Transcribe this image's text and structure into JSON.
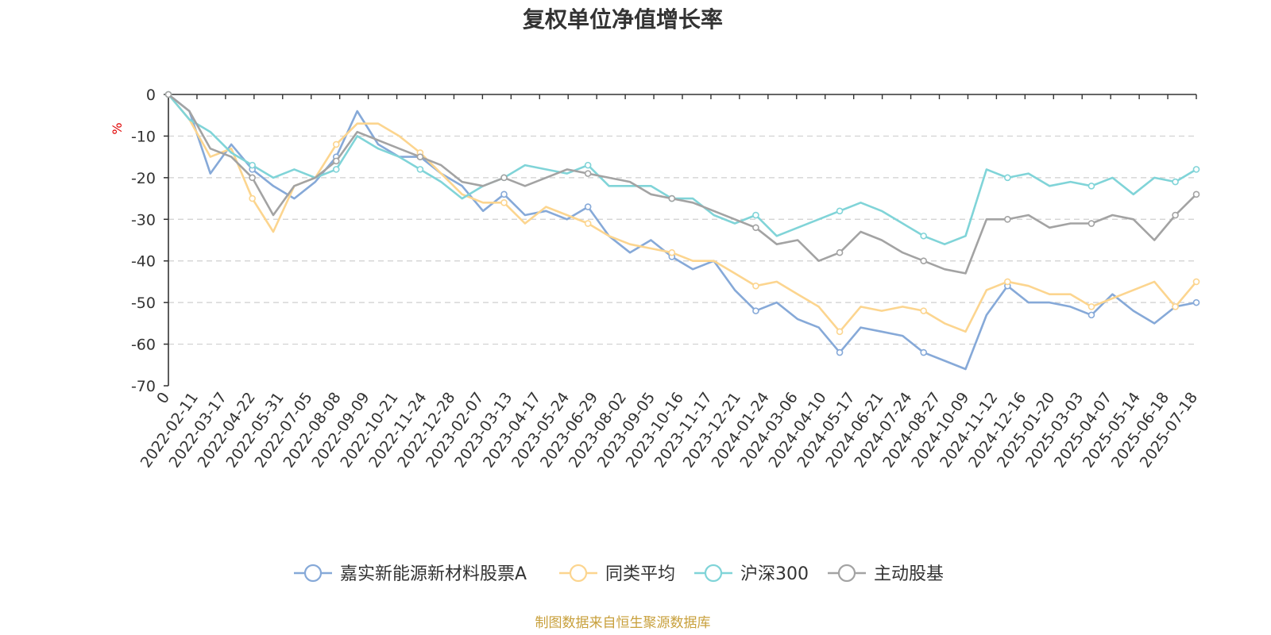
{
  "chart_data": {
    "type": "line",
    "title": "复权单位净值增长率",
    "ylabel": "%",
    "ylim": [
      -70,
      0
    ],
    "yticks": [
      0,
      -10,
      -20,
      -30,
      -40,
      -50,
      -60,
      -70
    ],
    "grid": true,
    "legend_position": "bottom",
    "x_tick_labels": [
      "0",
      "2022-02-11",
      "2022-03-17",
      "2022-04-22",
      "2022-05-31",
      "2022-07-05",
      "2022-08-08",
      "2022-09-09",
      "2022-10-21",
      "2022-11-24",
      "2022-12-28",
      "2023-02-07",
      "2023-03-13",
      "2023-04-17",
      "2023-05-24",
      "2023-06-29",
      "2023-08-02",
      "2023-09-05",
      "2023-10-16",
      "2023-11-17",
      "2023-12-21",
      "2024-01-24",
      "2024-03-06",
      "2024-04-10",
      "2024-05-17",
      "2024-06-21",
      "2024-07-24",
      "2024-08-27",
      "2024-10-09",
      "2024-11-12",
      "2024-12-16",
      "2025-01-20",
      "2025-03-03",
      "2025-04-07",
      "2025-05-14",
      "2025-06-18",
      "2025-07-18"
    ],
    "series": [
      {
        "name": "嘉实新能源新材料股票A",
        "color": "#86a9d8",
        "values": [
          0,
          -4,
          -19,
          -12,
          -18,
          -22,
          -25,
          -21,
          -15,
          -4,
          -12,
          -15,
          -15,
          -19,
          -22,
          -28,
          -24,
          -29,
          -28,
          -30,
          -27,
          -34,
          -38,
          -35,
          -39,
          -42,
          -40,
          -47,
          -52,
          -50,
          -54,
          -56,
          -62,
          -56,
          -57,
          -58,
          -62,
          -64,
          -66,
          -53,
          -46,
          -50,
          -50,
          -51,
          -53,
          -48,
          -52,
          -55,
          -51,
          -50
        ]
      },
      {
        "name": "同类平均",
        "color": "#fcd58f",
        "values": [
          0,
          -6,
          -15,
          -13,
          -25,
          -33,
          -22,
          -20,
          -12,
          -7,
          -7,
          -10,
          -14,
          -19,
          -24,
          -26,
          -26,
          -31,
          -27,
          -29,
          -31,
          -34,
          -36,
          -37,
          -38,
          -40,
          -40,
          -43,
          -46,
          -45,
          -48,
          -51,
          -57,
          -51,
          -52,
          -51,
          -52,
          -55,
          -57,
          -47,
          -45,
          -46,
          -48,
          -48,
          -51,
          -49,
          -47,
          -45,
          -51,
          -45
        ]
      },
      {
        "name": "沪深300",
        "color": "#80d4d8",
        "values": [
          0,
          -6,
          -9,
          -14,
          -17,
          -20,
          -18,
          -20,
          -18,
          -10,
          -13,
          -15,
          -18,
          -21,
          -25,
          -22,
          -20,
          -17,
          -18,
          -19,
          -17,
          -22,
          -22,
          -22,
          -25,
          -25,
          -29,
          -31,
          -29,
          -34,
          -32,
          -30,
          -28,
          -26,
          -28,
          -31,
          -34,
          -36,
          -34,
          -18,
          -20,
          -19,
          -22,
          -21,
          -22,
          -20,
          -24,
          -20,
          -21,
          -18
        ]
      },
      {
        "name": "主动股基",
        "color": "#a3a3a3",
        "values": [
          0,
          -4,
          -13,
          -15,
          -20,
          -29,
          -22,
          -20,
          -16,
          -9,
          -11,
          -13,
          -15,
          -17,
          -21,
          -22,
          -20,
          -22,
          -20,
          -18,
          -19,
          -20,
          -21,
          -24,
          -25,
          -26,
          -28,
          -30,
          -32,
          -36,
          -35,
          -40,
          -38,
          -33,
          -35,
          -38,
          -40,
          -42,
          -43,
          -30,
          -30,
          -29,
          -32,
          -31,
          -31,
          -29,
          -30,
          -35,
          -29,
          -24
        ]
      }
    ]
  },
  "source_note": "制图数据来自恒生聚源数据库"
}
